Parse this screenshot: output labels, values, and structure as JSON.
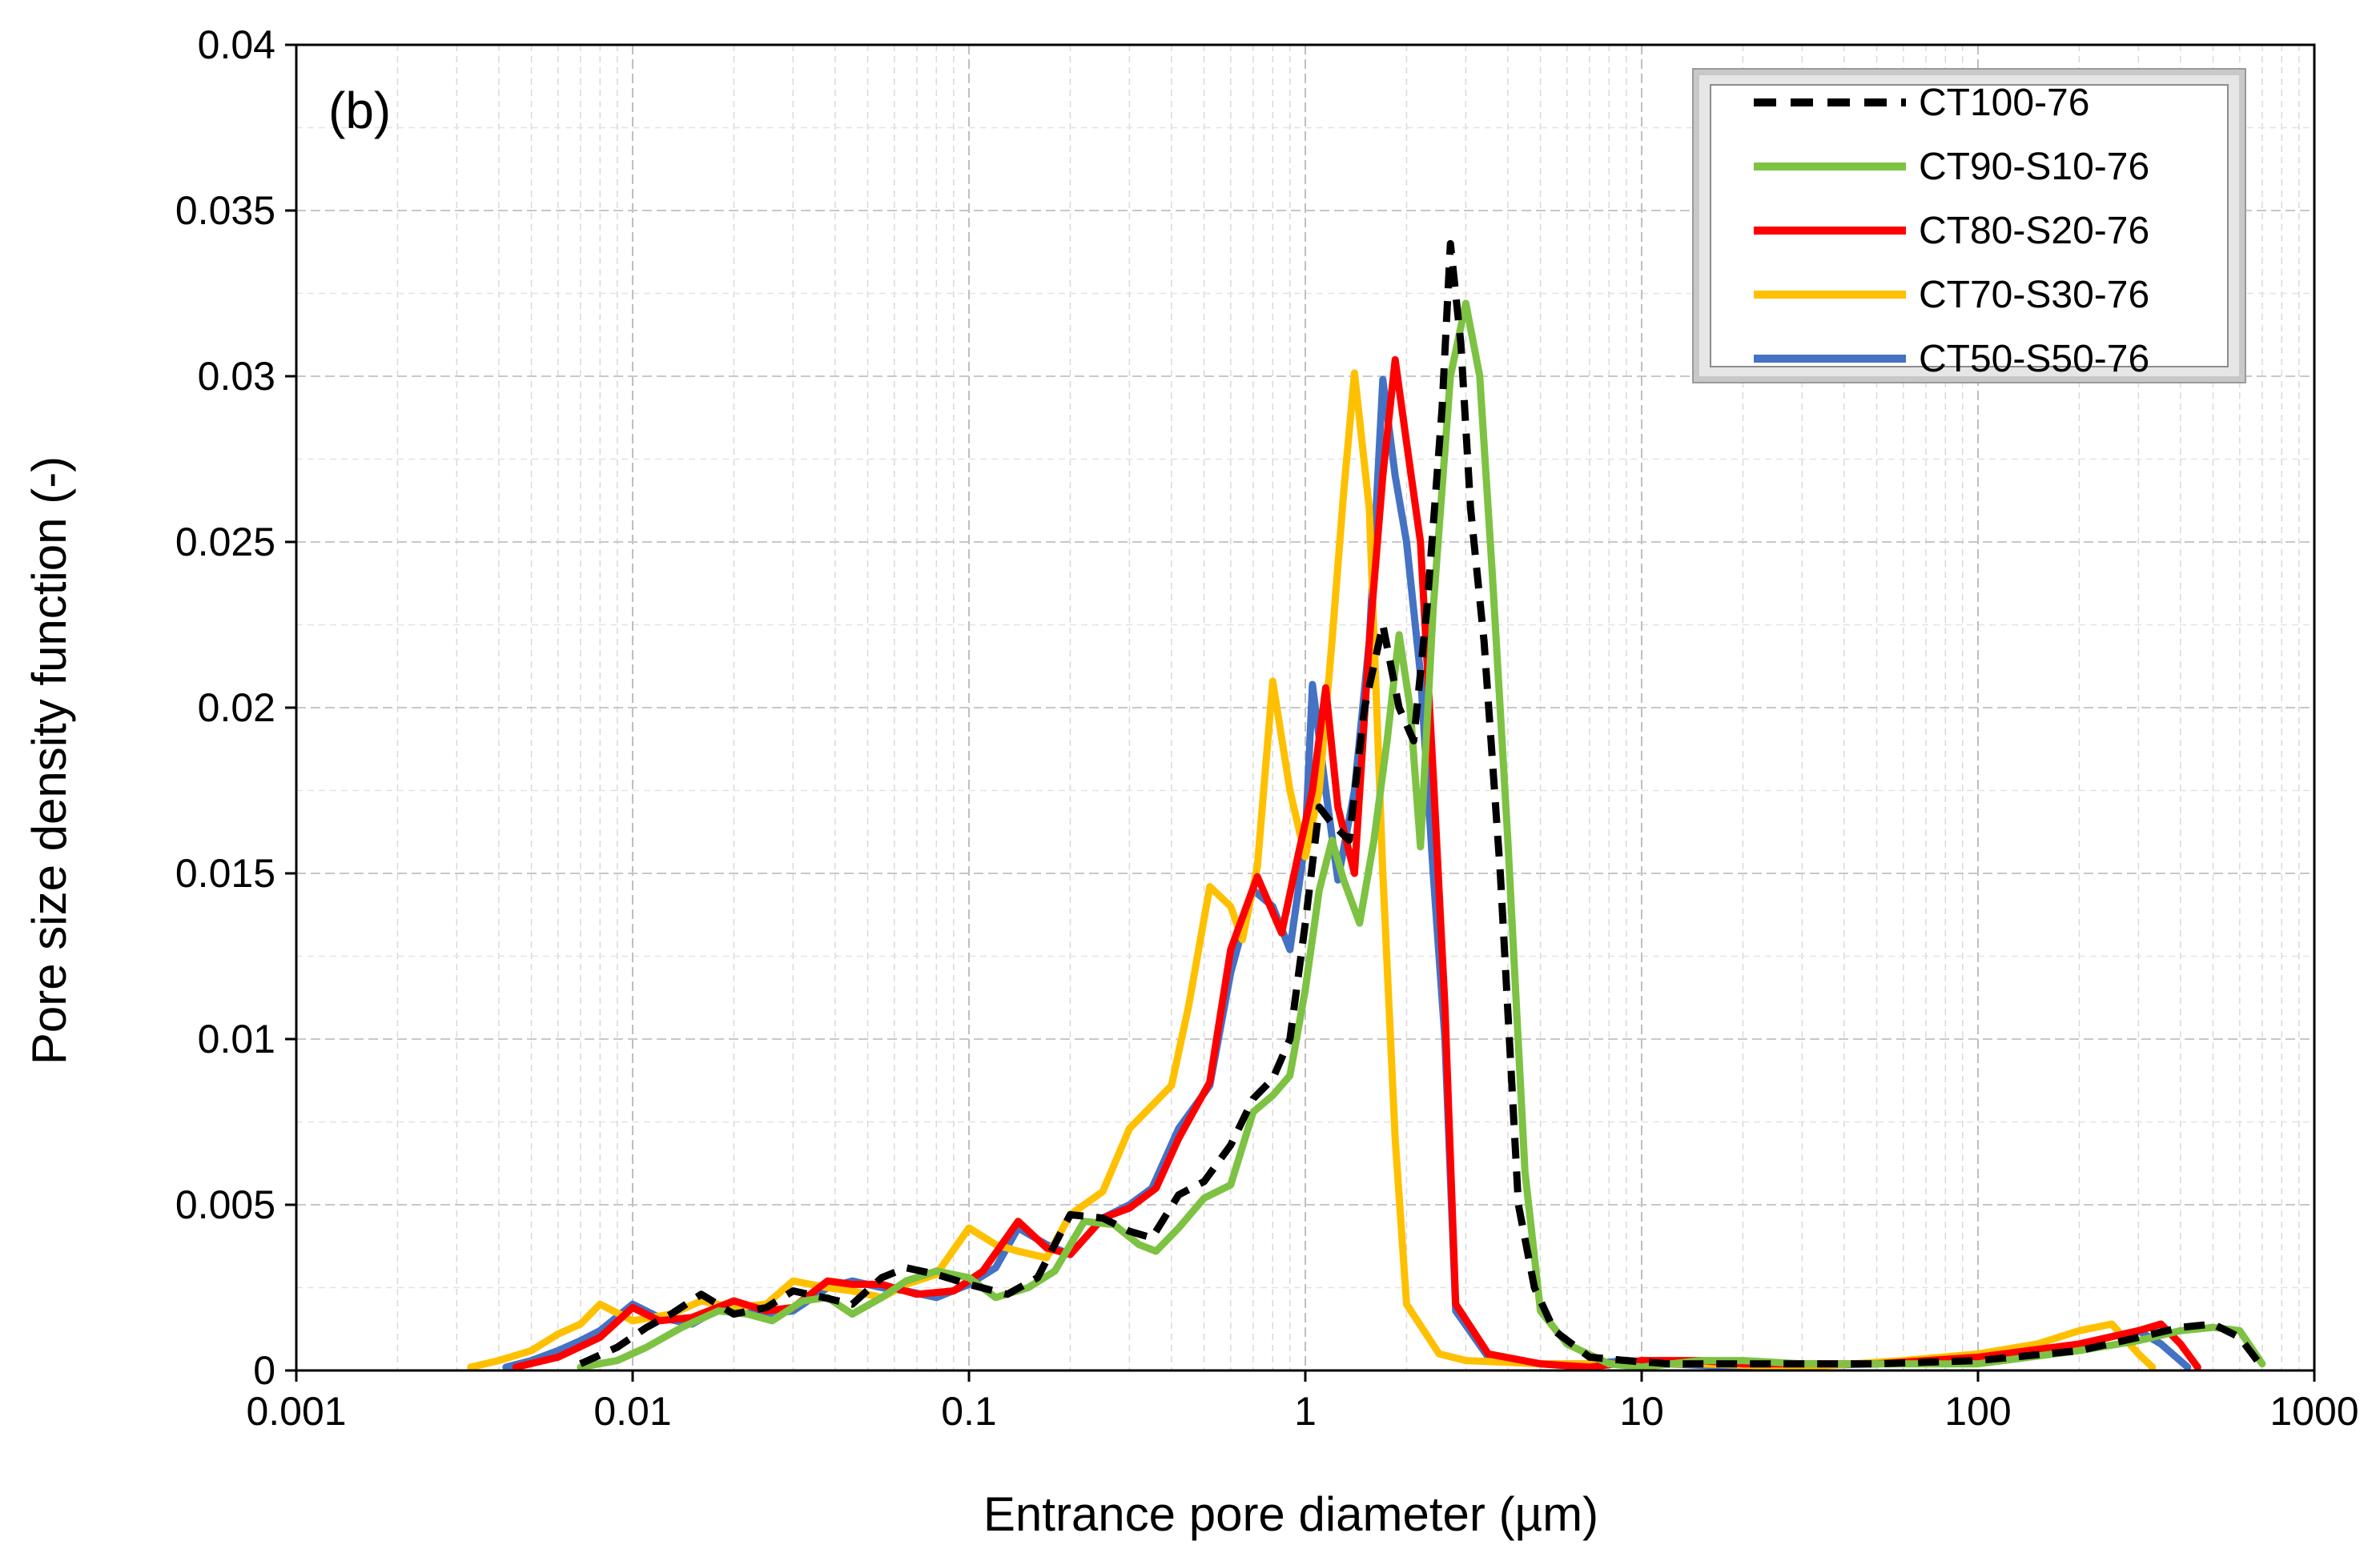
{
  "chart_data": {
    "type": "line",
    "panel_label": "(b)",
    "xlabel": "Entrance pore diameter (µm)",
    "ylabel": "Pore size density function (-)",
    "xscale": "log",
    "xlim": [
      0.001,
      1000
    ],
    "ylim": [
      0,
      0.04
    ],
    "grid": true,
    "legend_position": "top-right",
    "x_tick_labels": [
      "0.001",
      "0.01",
      "0.1",
      "1",
      "10",
      "100",
      "1000"
    ],
    "y_tick_labels": [
      "0",
      "0.005",
      "0.01",
      "0.015",
      "0.02",
      "0.025",
      "0.03",
      "0.035",
      "0.04"
    ],
    "series": [
      {
        "name": "CT100-76",
        "color": "#000000",
        "dashed": true,
        "points": [
          [
            0.007,
            0.0002
          ],
          [
            0.009,
            0.0007
          ],
          [
            0.011,
            0.0013
          ],
          [
            0.013,
            0.0017
          ],
          [
            0.016,
            0.0023
          ],
          [
            0.02,
            0.0017
          ],
          [
            0.025,
            0.0019
          ],
          [
            0.03,
            0.0024
          ],
          [
            0.037,
            0.0022
          ],
          [
            0.045,
            0.002
          ],
          [
            0.055,
            0.0028
          ],
          [
            0.065,
            0.0031
          ],
          [
            0.08,
            0.0029
          ],
          [
            0.1,
            0.0026
          ],
          [
            0.13,
            0.0023
          ],
          [
            0.16,
            0.0028
          ],
          [
            0.2,
            0.0047
          ],
          [
            0.25,
            0.0046
          ],
          [
            0.3,
            0.0042
          ],
          [
            0.35,
            0.004
          ],
          [
            0.42,
            0.0053
          ],
          [
            0.5,
            0.0057
          ],
          [
            0.6,
            0.0068
          ],
          [
            0.7,
            0.0082
          ],
          [
            0.8,
            0.0088
          ],
          [
            0.9,
            0.01
          ],
          [
            1.0,
            0.0135
          ],
          [
            1.1,
            0.017
          ],
          [
            1.2,
            0.0165
          ],
          [
            1.35,
            0.016
          ],
          [
            1.5,
            0.02
          ],
          [
            1.7,
            0.0225
          ],
          [
            1.9,
            0.02
          ],
          [
            2.1,
            0.019
          ],
          [
            2.3,
            0.023
          ],
          [
            2.55,
            0.029
          ],
          [
            2.7,
            0.034
          ],
          [
            2.9,
            0.031
          ],
          [
            3.1,
            0.026
          ],
          [
            3.4,
            0.022
          ],
          [
            3.8,
            0.015
          ],
          [
            4.3,
            0.005
          ],
          [
            4.8,
            0.0025
          ],
          [
            5.5,
            0.0012
          ],
          [
            7,
            0.0004
          ],
          [
            9,
            0.0003
          ],
          [
            12,
            0.0002
          ],
          [
            20,
            0.0002
          ],
          [
            50,
            0.0002
          ],
          [
            100,
            0.0003
          ],
          [
            200,
            0.0006
          ],
          [
            300,
            0.001
          ],
          [
            400,
            0.0013
          ],
          [
            500,
            0.0014
          ],
          [
            600,
            0.001
          ],
          [
            700,
            0.0001
          ]
        ]
      },
      {
        "name": "CT90-S10-76",
        "color": "#7DC242",
        "dashed": false,
        "points": [
          [
            0.007,
            0.0001
          ],
          [
            0.009,
            0.0003
          ],
          [
            0.011,
            0.0007
          ],
          [
            0.014,
            0.0013
          ],
          [
            0.018,
            0.0018
          ],
          [
            0.022,
            0.0017
          ],
          [
            0.026,
            0.0015
          ],
          [
            0.032,
            0.0021
          ],
          [
            0.038,
            0.0022
          ],
          [
            0.045,
            0.0017
          ],
          [
            0.055,
            0.0022
          ],
          [
            0.065,
            0.0027
          ],
          [
            0.08,
            0.003
          ],
          [
            0.1,
            0.0028
          ],
          [
            0.12,
            0.0022
          ],
          [
            0.15,
            0.0025
          ],
          [
            0.18,
            0.003
          ],
          [
            0.22,
            0.0045
          ],
          [
            0.27,
            0.0044
          ],
          [
            0.32,
            0.0038
          ],
          [
            0.36,
            0.0036
          ],
          [
            0.42,
            0.0043
          ],
          [
            0.5,
            0.0052
          ],
          [
            0.6,
            0.0056
          ],
          [
            0.7,
            0.0078
          ],
          [
            0.8,
            0.0083
          ],
          [
            0.9,
            0.0089
          ],
          [
            1.0,
            0.0115
          ],
          [
            1.1,
            0.0145
          ],
          [
            1.2,
            0.016
          ],
          [
            1.3,
            0.0148
          ],
          [
            1.45,
            0.0135
          ],
          [
            1.6,
            0.016
          ],
          [
            1.75,
            0.019
          ],
          [
            1.9,
            0.0222
          ],
          [
            2.05,
            0.02
          ],
          [
            2.2,
            0.0158
          ],
          [
            2.4,
            0.023
          ],
          [
            2.7,
            0.03
          ],
          [
            3.0,
            0.0322
          ],
          [
            3.3,
            0.03
          ],
          [
            3.6,
            0.024
          ],
          [
            4.0,
            0.016
          ],
          [
            4.5,
            0.006
          ],
          [
            5.0,
            0.0018
          ],
          [
            6,
            0.0008
          ],
          [
            8,
            0.0002
          ],
          [
            10,
            0.0001
          ],
          [
            15,
            0.0003
          ],
          [
            20,
            0.0003
          ],
          [
            30,
            0.0002
          ],
          [
            50,
            0.0002
          ],
          [
            100,
            0.0002
          ],
          [
            200,
            0.0006
          ],
          [
            300,
            0.0009
          ],
          [
            400,
            0.0012
          ],
          [
            500,
            0.0013
          ],
          [
            600,
            0.0012
          ],
          [
            700,
            0.0002
          ]
        ]
      },
      {
        "name": "CT80-S20-76",
        "color": "#FF0000",
        "dashed": false,
        "points": [
          [
            0.0045,
            0.0001
          ],
          [
            0.006,
            0.0004
          ],
          [
            0.008,
            0.001
          ],
          [
            0.01,
            0.0019
          ],
          [
            0.012,
            0.0015
          ],
          [
            0.015,
            0.0016
          ],
          [
            0.02,
            0.0021
          ],
          [
            0.025,
            0.0018
          ],
          [
            0.03,
            0.0019
          ],
          [
            0.038,
            0.0027
          ],
          [
            0.045,
            0.0026
          ],
          [
            0.055,
            0.0026
          ],
          [
            0.07,
            0.0023
          ],
          [
            0.09,
            0.0024
          ],
          [
            0.11,
            0.003
          ],
          [
            0.14,
            0.0045
          ],
          [
            0.17,
            0.0037
          ],
          [
            0.2,
            0.0035
          ],
          [
            0.25,
            0.0046
          ],
          [
            0.3,
            0.0049
          ],
          [
            0.36,
            0.0055
          ],
          [
            0.42,
            0.007
          ],
          [
            0.52,
            0.0087
          ],
          [
            0.6,
            0.0127
          ],
          [
            0.72,
            0.0149
          ],
          [
            0.85,
            0.0132
          ],
          [
            0.95,
            0.0155
          ],
          [
            1.05,
            0.0175
          ],
          [
            1.15,
            0.0206
          ],
          [
            1.25,
            0.017
          ],
          [
            1.4,
            0.015
          ],
          [
            1.55,
            0.022
          ],
          [
            1.7,
            0.027
          ],
          [
            1.85,
            0.0305
          ],
          [
            2.0,
            0.028
          ],
          [
            2.2,
            0.025
          ],
          [
            2.4,
            0.018
          ],
          [
            2.6,
            0.011
          ],
          [
            2.8,
            0.002
          ],
          [
            3.5,
            0.0005
          ],
          [
            5,
            0.0002
          ],
          [
            7,
            0.0001
          ],
          [
            10,
            0.0003
          ],
          [
            15,
            0.0003
          ],
          [
            20,
            0.0002
          ],
          [
            50,
            0.0002
          ],
          [
            100,
            0.0004
          ],
          [
            200,
            0.0008
          ],
          [
            300,
            0.0012
          ],
          [
            350,
            0.0014
          ],
          [
            400,
            0.0008
          ],
          [
            450,
            0.0001
          ]
        ]
      },
      {
        "name": "CT70-S30-76",
        "color": "#FFC000",
        "dashed": false,
        "points": [
          [
            0.0033,
            0.0001
          ],
          [
            0.004,
            0.0003
          ],
          [
            0.005,
            0.0006
          ],
          [
            0.006,
            0.0011
          ],
          [
            0.007,
            0.0014
          ],
          [
            0.008,
            0.002
          ],
          [
            0.01,
            0.0015
          ],
          [
            0.013,
            0.0017
          ],
          [
            0.016,
            0.0021
          ],
          [
            0.02,
            0.0019
          ],
          [
            0.025,
            0.002
          ],
          [
            0.03,
            0.0027
          ],
          [
            0.038,
            0.0025
          ],
          [
            0.045,
            0.0024
          ],
          [
            0.055,
            0.0022
          ],
          [
            0.065,
            0.0026
          ],
          [
            0.08,
            0.0029
          ],
          [
            0.1,
            0.0043
          ],
          [
            0.12,
            0.0038
          ],
          [
            0.14,
            0.0036
          ],
          [
            0.17,
            0.0034
          ],
          [
            0.2,
            0.0047
          ],
          [
            0.25,
            0.0054
          ],
          [
            0.3,
            0.0073
          ],
          [
            0.4,
            0.0086
          ],
          [
            0.45,
            0.011
          ],
          [
            0.52,
            0.0146
          ],
          [
            0.6,
            0.014
          ],
          [
            0.65,
            0.013
          ],
          [
            0.72,
            0.0152
          ],
          [
            0.8,
            0.0208
          ],
          [
            0.9,
            0.0175
          ],
          [
            1.0,
            0.0155
          ],
          [
            1.1,
            0.0175
          ],
          [
            1.2,
            0.022
          ],
          [
            1.3,
            0.0265
          ],
          [
            1.4,
            0.0301
          ],
          [
            1.55,
            0.026
          ],
          [
            1.7,
            0.015
          ],
          [
            1.85,
            0.007
          ],
          [
            2.0,
            0.002
          ],
          [
            2.5,
            0.0005
          ],
          [
            3,
            0.0003
          ],
          [
            5,
            0.0002
          ],
          [
            8,
            0.0002
          ],
          [
            15,
            0.0002
          ],
          [
            30,
            0.0001
          ],
          [
            60,
            0.0003
          ],
          [
            100,
            0.0005
          ],
          [
            150,
            0.0008
          ],
          [
            200,
            0.0012
          ],
          [
            250,
            0.0014
          ],
          [
            300,
            0.0005
          ],
          [
            330,
            0.0001
          ]
        ]
      },
      {
        "name": "CT50-S50-76",
        "color": "#4472C4",
        "dashed": false,
        "points": [
          [
            0.0042,
            0.0001
          ],
          [
            0.005,
            0.0003
          ],
          [
            0.006,
            0.0006
          ],
          [
            0.007,
            0.0009
          ],
          [
            0.008,
            0.0012
          ],
          [
            0.01,
            0.002
          ],
          [
            0.012,
            0.0016
          ],
          [
            0.015,
            0.0014
          ],
          [
            0.02,
            0.0021
          ],
          [
            0.025,
            0.0017
          ],
          [
            0.03,
            0.0018
          ],
          [
            0.038,
            0.0025
          ],
          [
            0.045,
            0.0027
          ],
          [
            0.055,
            0.0025
          ],
          [
            0.065,
            0.0024
          ],
          [
            0.08,
            0.0022
          ],
          [
            0.1,
            0.0026
          ],
          [
            0.12,
            0.0031
          ],
          [
            0.14,
            0.0043
          ],
          [
            0.17,
            0.0038
          ],
          [
            0.2,
            0.0035
          ],
          [
            0.25,
            0.0046
          ],
          [
            0.3,
            0.005
          ],
          [
            0.35,
            0.0055
          ],
          [
            0.42,
            0.0073
          ],
          [
            0.52,
            0.0086
          ],
          [
            0.6,
            0.012
          ],
          [
            0.7,
            0.0145
          ],
          [
            0.8,
            0.014
          ],
          [
            0.9,
            0.0127
          ],
          [
            1.0,
            0.016
          ],
          [
            1.05,
            0.0207
          ],
          [
            1.15,
            0.0175
          ],
          [
            1.25,
            0.0148
          ],
          [
            1.4,
            0.0175
          ],
          [
            1.55,
            0.022
          ],
          [
            1.7,
            0.0299
          ],
          [
            1.85,
            0.027
          ],
          [
            2.0,
            0.025
          ],
          [
            2.2,
            0.021
          ],
          [
            2.4,
            0.015
          ],
          [
            2.6,
            0.01
          ],
          [
            2.8,
            0.0018
          ],
          [
            3.5,
            0.0004
          ],
          [
            5,
            0.0002
          ],
          [
            7,
            0.0002
          ],
          [
            9,
            0.0003
          ],
          [
            12,
            0.0002
          ],
          [
            20,
            0.0001
          ],
          [
            50,
            0.0002
          ],
          [
            100,
            0.0003
          ],
          [
            200,
            0.0008
          ],
          [
            300,
            0.0012
          ],
          [
            350,
            0.0008
          ],
          [
            420,
            0.0001
          ]
        ]
      }
    ]
  }
}
